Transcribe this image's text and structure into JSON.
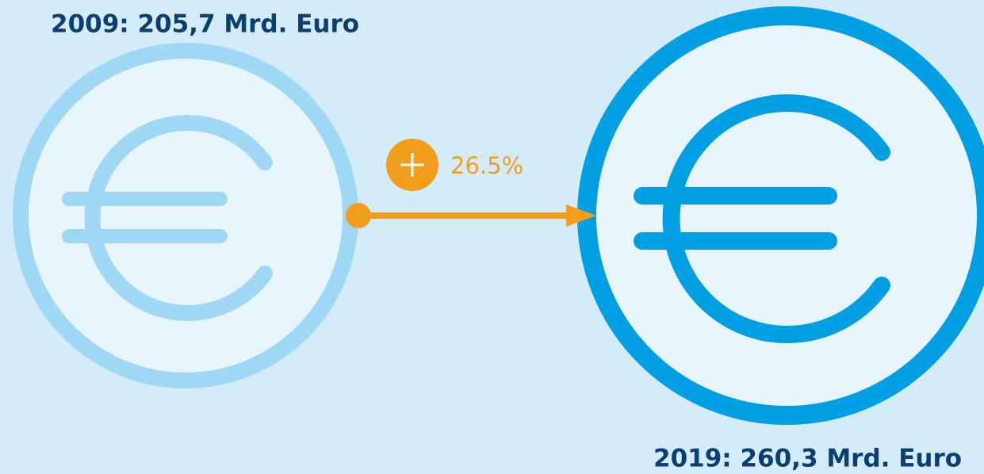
{
  "coins": [
    {
      "label": "2009: 205,7 Mrd. Euro"
    },
    {
      "label": "2019: 260,3 Mrd. Euro"
    }
  ],
  "change": {
    "label": "26.5%"
  }
}
